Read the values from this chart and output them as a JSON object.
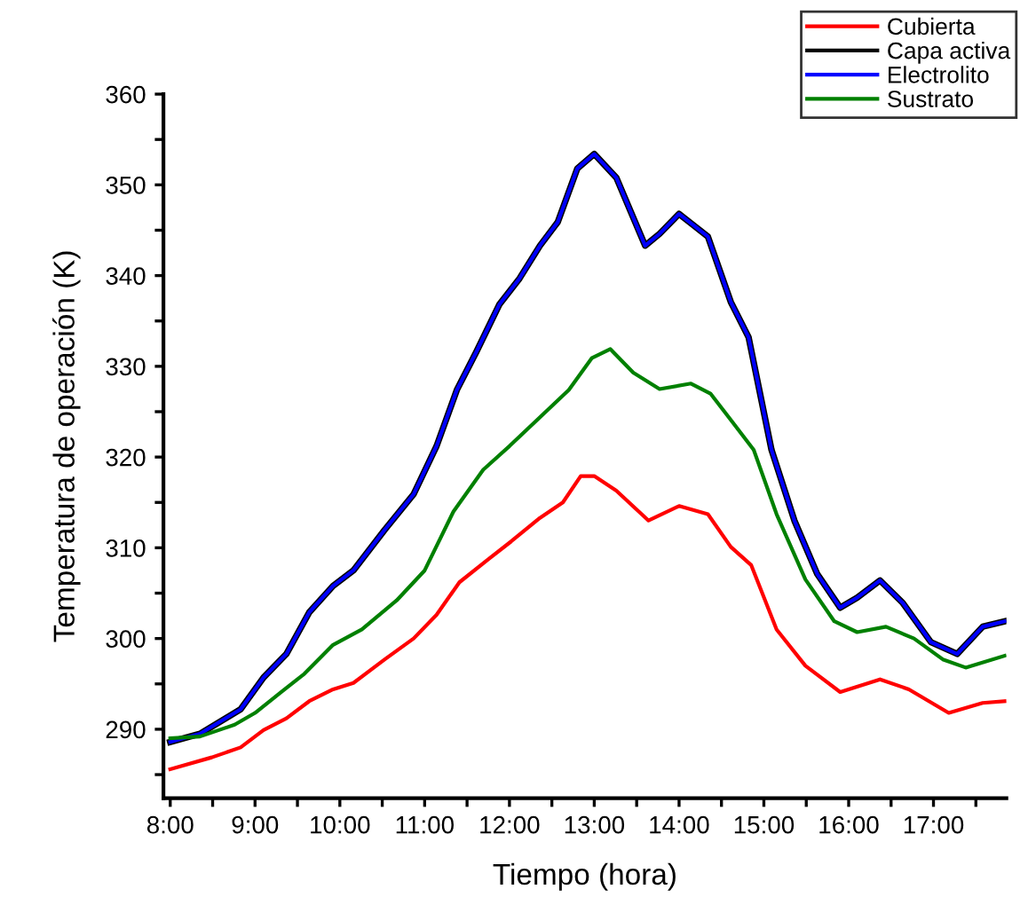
{
  "chart_data": {
    "type": "line",
    "xlabel": "Tiempo (hora)",
    "ylabel": "Temperatura de operación (K)",
    "xlim": [
      7.92,
      17.86
    ],
    "ylim": [
      282.4,
      360
    ],
    "xticks": [
      {
        "value": 8,
        "label": "8:00"
      },
      {
        "value": 8.5,
        "label": null
      },
      {
        "value": 9,
        "label": "9:00"
      },
      {
        "value": 9.5,
        "label": null
      },
      {
        "value": 10,
        "label": "10:00"
      },
      {
        "value": 10.5,
        "label": null
      },
      {
        "value": 11,
        "label": "11:00"
      },
      {
        "value": 11.5,
        "label": null
      },
      {
        "value": 12,
        "label": "12:00"
      },
      {
        "value": 12.5,
        "label": null
      },
      {
        "value": 13,
        "label": "13:00"
      },
      {
        "value": 13.5,
        "label": null
      },
      {
        "value": 14,
        "label": "14:00"
      },
      {
        "value": 14.5,
        "label": null
      },
      {
        "value": 15,
        "label": "15:00"
      },
      {
        "value": 15.5,
        "label": null
      },
      {
        "value": 16,
        "label": "16:00"
      },
      {
        "value": 16.5,
        "label": null
      },
      {
        "value": 17,
        "label": "17:00"
      },
      {
        "value": 17.5,
        "label": null
      }
    ],
    "yticks": [
      {
        "value": 285,
        "label": null
      },
      290,
      {
        "value": 295,
        "label": null
      },
      300,
      {
        "value": 305,
        "label": null
      },
      310,
      {
        "value": 315,
        "label": null
      },
      320,
      {
        "value": 325,
        "label": null
      },
      330,
      {
        "value": 335,
        "label": null
      },
      340,
      {
        "value": 345,
        "label": null
      },
      350,
      {
        "value": 355,
        "label": null
      },
      360
    ],
    "grid": false,
    "legend": "top right",
    "marker": "none",
    "line_style": "solid",
    "series": [
      {
        "name": "Cubierta",
        "color": "#ff0000",
        "x": [
          8.0,
          8.49,
          8.83,
          9.1,
          9.37,
          9.64,
          9.92,
          10.16,
          10.53,
          10.87,
          11.14,
          11.41,
          11.76,
          12.02,
          12.36,
          12.63,
          12.84,
          13.0,
          13.26,
          13.64,
          14.0,
          14.34,
          14.61,
          14.85,
          15.15,
          15.49,
          15.9,
          16.37,
          16.71,
          17.18,
          17.58,
          17.84
        ],
        "values": [
          285.6,
          286.9,
          288.0,
          289.9,
          291.2,
          293.1,
          294.4,
          295.1,
          297.7,
          300.0,
          302.6,
          306.2,
          308.8,
          310.7,
          313.3,
          315.0,
          317.9,
          317.9,
          316.3,
          313.0,
          314.6,
          313.7,
          310.1,
          308.1,
          301.0,
          297.0,
          294.1,
          295.5,
          294.4,
          291.8,
          292.9,
          293.1
        ]
      },
      {
        "name": "Capa activa",
        "color": "#000000",
        "x": [
          8.0,
          8.35,
          8.83,
          9.1,
          9.37,
          9.64,
          9.92,
          10.16,
          10.53,
          10.87,
          11.14,
          11.38,
          11.61,
          11.88,
          12.12,
          12.36,
          12.57,
          12.8,
          13.0,
          13.26,
          13.6,
          13.77,
          14.0,
          14.34,
          14.61,
          14.82,
          15.09,
          15.36,
          15.63,
          15.9,
          16.1,
          16.37,
          16.64,
          16.97,
          17.28,
          17.58,
          17.84
        ],
        "values": [
          288.6,
          289.5,
          292.2,
          295.7,
          298.3,
          302.9,
          305.8,
          307.5,
          312.0,
          315.9,
          321.2,
          327.4,
          331.6,
          336.8,
          339.7,
          343.3,
          345.9,
          351.8,
          353.4,
          350.8,
          343.3,
          344.6,
          346.8,
          344.3,
          337.1,
          333.2,
          320.8,
          313.0,
          307.1,
          303.4,
          304.5,
          306.4,
          303.9,
          299.6,
          298.3,
          301.3,
          301.9
        ]
      },
      {
        "name": "Electrolito",
        "color": "#0000ff",
        "x": [
          8.0,
          8.35,
          8.83,
          9.1,
          9.37,
          9.64,
          9.92,
          10.16,
          10.53,
          10.87,
          11.14,
          11.38,
          11.61,
          11.88,
          12.12,
          12.36,
          12.57,
          12.8,
          13.0,
          13.26,
          13.6,
          13.77,
          14.0,
          14.34,
          14.61,
          14.82,
          15.09,
          15.36,
          15.63,
          15.9,
          16.1,
          16.37,
          16.64,
          16.97,
          17.28,
          17.58,
          17.84
        ],
        "values": [
          288.6,
          289.5,
          292.2,
          295.7,
          298.3,
          302.9,
          305.8,
          307.5,
          312.0,
          315.9,
          321.2,
          327.4,
          331.6,
          336.8,
          339.7,
          343.3,
          345.9,
          351.8,
          353.4,
          350.8,
          343.3,
          344.6,
          346.8,
          344.3,
          337.1,
          333.2,
          320.8,
          313.0,
          307.1,
          303.4,
          304.5,
          306.4,
          303.9,
          299.6,
          298.3,
          301.3,
          301.9
        ]
      },
      {
        "name": "Sustrato",
        "color": "#008000",
        "x": [
          8.0,
          8.35,
          8.76,
          9.0,
          9.31,
          9.58,
          9.92,
          10.26,
          10.67,
          11.0,
          11.34,
          11.69,
          12.0,
          12.36,
          12.7,
          12.97,
          13.19,
          13.46,
          13.77,
          14.14,
          14.37,
          14.61,
          14.88,
          15.15,
          15.49,
          15.83,
          16.1,
          16.44,
          16.77,
          17.11,
          17.38,
          17.84
        ],
        "values": [
          289.0,
          289.2,
          290.5,
          291.8,
          294.1,
          296.1,
          299.3,
          301.0,
          304.2,
          307.5,
          314.0,
          318.6,
          321.2,
          324.4,
          327.4,
          330.9,
          331.9,
          329.3,
          327.5,
          328.1,
          327.0,
          324.1,
          320.8,
          313.7,
          306.5,
          301.9,
          300.7,
          301.3,
          300.0,
          297.7,
          296.8,
          298.1
        ]
      }
    ]
  }
}
